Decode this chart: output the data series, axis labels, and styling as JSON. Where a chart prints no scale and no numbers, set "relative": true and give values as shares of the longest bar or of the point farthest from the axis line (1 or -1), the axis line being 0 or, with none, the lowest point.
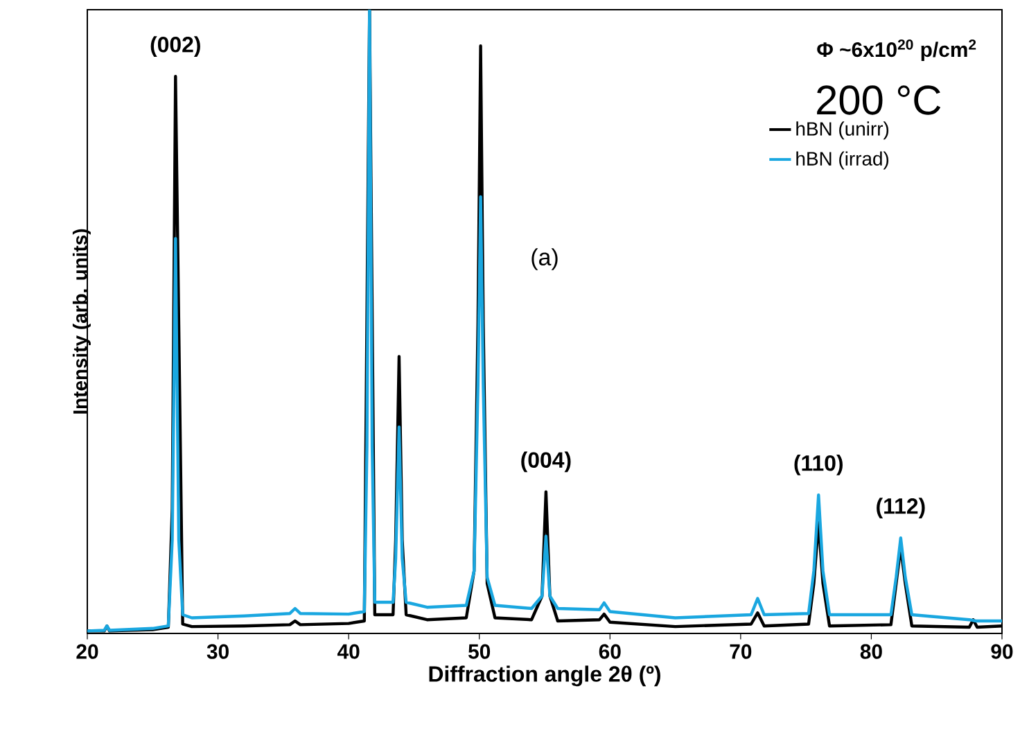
{
  "chart_data": {
    "type": "line",
    "xlabel": "Diffraction angle 2θ (º)",
    "ylabel": "Intensity (arb. units)",
    "relative": true,
    "xlim": [
      20,
      90
    ],
    "xticks": [
      20,
      30,
      40,
      50,
      60,
      70,
      80,
      90
    ],
    "tick_labels": "x",
    "legend": "top right",
    "series": [
      {
        "name": "hBN (unirr)",
        "color": "#000000",
        "x": [
          20,
          21.3,
          21.5,
          21.7,
          25,
          26.2,
          26.5,
          26.75,
          27.3,
          28,
          32,
          35.5,
          35.9,
          36.3,
          40,
          41.2,
          41.6,
          42.0,
          43.4,
          43.6,
          43.86,
          44.1,
          44.4,
          46,
          49,
          49.6,
          49.9,
          50.1,
          50.3,
          50.6,
          51.2,
          54,
          54.8,
          55.1,
          55.4,
          56,
          59.2,
          59.55,
          60,
          65,
          70.8,
          71.3,
          71.8,
          75.2,
          75.6,
          75.96,
          76.3,
          76.8,
          81.5,
          81.9,
          82.25,
          82.6,
          83.1,
          87.5,
          87.8,
          88.1,
          90
        ],
        "values": [
          0.004,
          0.004,
          0.012,
          0.004,
          0.006,
          0.01,
          0.2,
          0.893,
          0.015,
          0.011,
          0.012,
          0.014,
          0.02,
          0.014,
          0.016,
          0.02,
          1,
          0.03,
          0.03,
          0.15,
          0.444,
          0.15,
          0.03,
          0.022,
          0.025,
          0.1,
          0.5,
          0.942,
          0.5,
          0.08,
          0.025,
          0.022,
          0.06,
          0.227,
          0.06,
          0.02,
          0.022,
          0.031,
          0.018,
          0.011,
          0.015,
          0.033,
          0.012,
          0.015,
          0.08,
          0.178,
          0.08,
          0.012,
          0.014,
          0.08,
          0.138,
          0.08,
          0.012,
          0.01,
          0.022,
          0.01,
          0.012
        ]
      },
      {
        "name": "hBN (irrad)",
        "color": "#1aa7e0",
        "x": [
          20,
          21.3,
          21.5,
          21.7,
          25,
          26.2,
          26.5,
          26.75,
          27.0,
          27.3,
          28,
          32,
          35.5,
          35.9,
          36.3,
          40,
          41.2,
          41.4,
          41.6,
          41.8,
          42.0,
          43.4,
          43.6,
          43.86,
          44.1,
          44.4,
          46,
          49,
          49.6,
          49.9,
          50.1,
          50.3,
          50.6,
          51.2,
          54,
          54.8,
          55.1,
          55.4,
          56,
          59.2,
          59.55,
          60,
          65,
          70.8,
          71.3,
          71.8,
          75.2,
          75.6,
          75.96,
          76.3,
          76.8,
          81.5,
          81.9,
          82.25,
          82.6,
          83.1,
          87.5,
          88,
          90
        ],
        "values": [
          0.004,
          0.005,
          0.012,
          0.005,
          0.008,
          0.012,
          0.15,
          0.633,
          0.15,
          0.03,
          0.025,
          0.028,
          0.032,
          0.04,
          0.032,
          0.031,
          0.035,
          0.3,
          1,
          0.3,
          0.05,
          0.05,
          0.12,
          0.331,
          0.12,
          0.05,
          0.042,
          0.045,
          0.1,
          0.4,
          0.7,
          0.4,
          0.09,
          0.045,
          0.04,
          0.06,
          0.156,
          0.06,
          0.04,
          0.038,
          0.049,
          0.035,
          0.025,
          0.03,
          0.056,
          0.03,
          0.032,
          0.1,
          0.222,
          0.1,
          0.03,
          0.03,
          0.09,
          0.153,
          0.09,
          0.03,
          0.022,
          0.02,
          0.02
        ]
      }
    ],
    "annotations": [
      "Φ ~6x10$^{20}$ p/cm$^{2}$",
      "200 °C",
      "(a)",
      {
        "text": "(002)",
        "x": 26.75,
        "y": 0.893
      },
      {
        "text": "(004)",
        "x": 55.1,
        "y": 0.227
      },
      {
        "text": "(110)",
        "x": 75.96,
        "y": 0.222
      },
      {
        "text": "(112)",
        "x": 82.25,
        "y": 0.153
      }
    ]
  }
}
